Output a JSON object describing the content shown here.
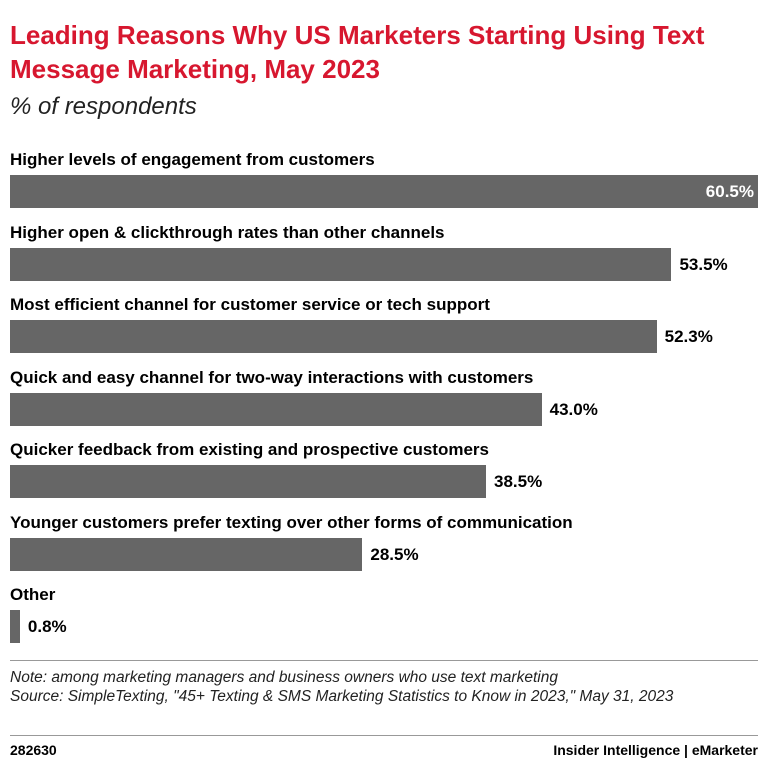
{
  "chart_data": {
    "type": "bar",
    "orientation": "horizontal",
    "title": "Leading Reasons Why US Marketers Starting Using Text Message Marketing, May 2023",
    "subtitle": "% of respondents",
    "categories": [
      "Higher levels of engagement from customers",
      "Higher open & clickthrough rates than other channels",
      "Most efficient channel for customer service or tech support",
      "Quick and easy channel for two-way interactions with customers",
      "Quicker feedback from existing and prospective customers",
      "Younger customers prefer texting over other forms of communication",
      "Other"
    ],
    "values": [
      60.5,
      53.5,
      52.3,
      43.0,
      38.5,
      28.5,
      0.8
    ],
    "value_labels": [
      "60.5%",
      "53.5%",
      "52.3%",
      "43.0%",
      "38.5%",
      "28.5%",
      "0.8%"
    ],
    "color": "#666666",
    "xlim": [
      0,
      60.5
    ],
    "note": "Note: among marketing managers and business owners who use text marketing",
    "source": "Source: SimpleTexting, \"45+ Texting & SMS Marketing Statistics to Know in 2023,\" May 31, 2023",
    "chart_id": "282630",
    "brand": "Insider Intelligence | eMarketer"
  }
}
